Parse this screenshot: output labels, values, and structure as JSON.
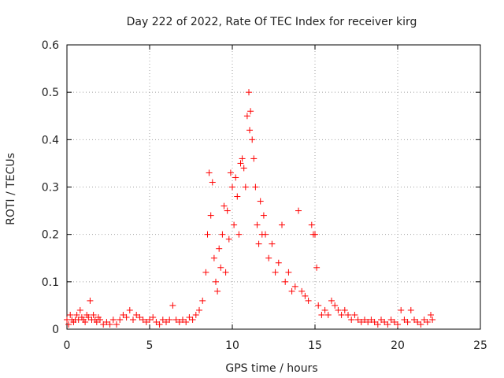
{
  "chart_data": {
    "type": "scatter",
    "title": "Day 222 of 2022, Rate Of TEC Index for receiver kirg",
    "xlabel": "GPS time / hours",
    "ylabel": "ROTI / TECUs",
    "xlim": [
      0,
      25
    ],
    "ylim": [
      0,
      0.6
    ],
    "x_ticks": [
      0,
      5,
      10,
      15,
      20,
      25
    ],
    "x_tick_labels": [
      "0",
      "5",
      "10",
      "15",
      "20",
      "25"
    ],
    "y_ticks": [
      0,
      0.1,
      0.2,
      0.3,
      0.4,
      0.5,
      0.6
    ],
    "y_tick_labels": [
      "0",
      "0.1",
      "0.2",
      "0.3",
      "0.4",
      "0.5",
      "0.6"
    ],
    "grid": true,
    "grid_style": "dotted",
    "marker": "+",
    "color": "#ff0000",
    "series": [
      {
        "points": [
          [
            0.0,
            0.02
          ],
          [
            0.1,
            0.01
          ],
          [
            0.2,
            0.03
          ],
          [
            0.3,
            0.02
          ],
          [
            0.4,
            0.015
          ],
          [
            0.5,
            0.02
          ],
          [
            0.6,
            0.03
          ],
          [
            0.7,
            0.02
          ],
          [
            0.8,
            0.04
          ],
          [
            0.9,
            0.025
          ],
          [
            1.0,
            0.02
          ],
          [
            1.1,
            0.015
          ],
          [
            1.2,
            0.03
          ],
          [
            1.3,
            0.025
          ],
          [
            1.4,
            0.06
          ],
          [
            1.5,
            0.02
          ],
          [
            1.6,
            0.03
          ],
          [
            1.7,
            0.02
          ],
          [
            1.8,
            0.015
          ],
          [
            1.9,
            0.025
          ],
          [
            2.0,
            0.02
          ],
          [
            2.2,
            0.01
          ],
          [
            2.4,
            0.015
          ],
          [
            2.6,
            0.01
          ],
          [
            2.8,
            0.02
          ],
          [
            3.0,
            0.01
          ],
          [
            3.2,
            0.02
          ],
          [
            3.4,
            0.03
          ],
          [
            3.6,
            0.025
          ],
          [
            3.8,
            0.04
          ],
          [
            4.0,
            0.02
          ],
          [
            4.2,
            0.03
          ],
          [
            4.4,
            0.025
          ],
          [
            4.6,
            0.02
          ],
          [
            4.8,
            0.015
          ],
          [
            5.0,
            0.02
          ],
          [
            5.2,
            0.025
          ],
          [
            5.4,
            0.015
          ],
          [
            5.6,
            0.01
          ],
          [
            5.8,
            0.02
          ],
          [
            6.0,
            0.015
          ],
          [
            6.2,
            0.02
          ],
          [
            6.4,
            0.05
          ],
          [
            6.6,
            0.02
          ],
          [
            6.8,
            0.015
          ],
          [
            7.0,
            0.02
          ],
          [
            7.2,
            0.015
          ],
          [
            7.4,
            0.025
          ],
          [
            7.6,
            0.02
          ],
          [
            7.8,
            0.03
          ],
          [
            8.0,
            0.04
          ],
          [
            8.2,
            0.06
          ],
          [
            8.4,
            0.12
          ],
          [
            8.5,
            0.2
          ],
          [
            8.6,
            0.33
          ],
          [
            8.7,
            0.24
          ],
          [
            8.8,
            0.31
          ],
          [
            8.9,
            0.15
          ],
          [
            9.0,
            0.1
          ],
          [
            9.1,
            0.08
          ],
          [
            9.2,
            0.17
          ],
          [
            9.3,
            0.13
          ],
          [
            9.4,
            0.2
          ],
          [
            9.5,
            0.26
          ],
          [
            9.6,
            0.12
          ],
          [
            9.7,
            0.25
          ],
          [
            9.8,
            0.19
          ],
          [
            9.9,
            0.33
          ],
          [
            10.0,
            0.3
          ],
          [
            10.1,
            0.22
          ],
          [
            10.2,
            0.32
          ],
          [
            10.3,
            0.28
          ],
          [
            10.4,
            0.2
          ],
          [
            10.5,
            0.35
          ],
          [
            10.6,
            0.36
          ],
          [
            10.7,
            0.34
          ],
          [
            10.8,
            0.3
          ],
          [
            10.9,
            0.45
          ],
          [
            11.0,
            0.5
          ],
          [
            11.05,
            0.42
          ],
          [
            11.1,
            0.46
          ],
          [
            11.2,
            0.4
          ],
          [
            11.3,
            0.36
          ],
          [
            11.4,
            0.3
          ],
          [
            11.5,
            0.22
          ],
          [
            11.6,
            0.18
          ],
          [
            11.7,
            0.27
          ],
          [
            11.8,
            0.2
          ],
          [
            11.9,
            0.24
          ],
          [
            12.0,
            0.2
          ],
          [
            12.2,
            0.15
          ],
          [
            12.4,
            0.18
          ],
          [
            12.6,
            0.12
          ],
          [
            12.8,
            0.14
          ],
          [
            13.0,
            0.22
          ],
          [
            13.2,
            0.1
          ],
          [
            13.4,
            0.12
          ],
          [
            13.6,
            0.08
          ],
          [
            13.8,
            0.09
          ],
          [
            14.0,
            0.25
          ],
          [
            14.2,
            0.08
          ],
          [
            14.4,
            0.07
          ],
          [
            14.6,
            0.06
          ],
          [
            14.8,
            0.22
          ],
          [
            14.9,
            0.2
          ],
          [
            15.0,
            0.2
          ],
          [
            15.1,
            0.13
          ],
          [
            15.2,
            0.05
          ],
          [
            15.4,
            0.03
          ],
          [
            15.6,
            0.04
          ],
          [
            15.8,
            0.03
          ],
          [
            16.0,
            0.06
          ],
          [
            16.2,
            0.05
          ],
          [
            16.4,
            0.04
          ],
          [
            16.6,
            0.03
          ],
          [
            16.8,
            0.04
          ],
          [
            17.0,
            0.03
          ],
          [
            17.2,
            0.02
          ],
          [
            17.4,
            0.03
          ],
          [
            17.6,
            0.02
          ],
          [
            17.8,
            0.015
          ],
          [
            18.0,
            0.02
          ],
          [
            18.2,
            0.015
          ],
          [
            18.4,
            0.02
          ],
          [
            18.6,
            0.015
          ],
          [
            18.8,
            0.01
          ],
          [
            19.0,
            0.02
          ],
          [
            19.2,
            0.015
          ],
          [
            19.4,
            0.01
          ],
          [
            19.6,
            0.02
          ],
          [
            19.8,
            0.015
          ],
          [
            20.0,
            0.01
          ],
          [
            20.2,
            0.04
          ],
          [
            20.4,
            0.02
          ],
          [
            20.6,
            0.015
          ],
          [
            20.8,
            0.04
          ],
          [
            21.0,
            0.02
          ],
          [
            21.2,
            0.015
          ],
          [
            21.4,
            0.01
          ],
          [
            21.6,
            0.02
          ],
          [
            21.8,
            0.015
          ],
          [
            22.0,
            0.03
          ],
          [
            22.1,
            0.02
          ]
        ]
      }
    ]
  }
}
